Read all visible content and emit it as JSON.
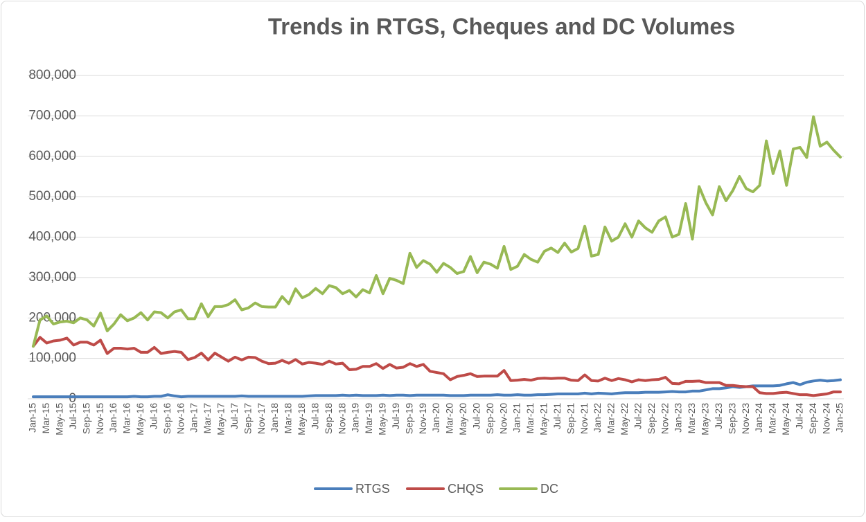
{
  "chart_data": {
    "type": "line",
    "title": "Trends in RTGS, Cheques and DC Volumes",
    "categories": [
      "Jan-15",
      null,
      "Mar-15",
      null,
      "May-15",
      null,
      "Jul-15",
      null,
      "Sep-15",
      null,
      "Nov-15",
      null,
      "Jan-16",
      null,
      "Mar-16",
      null,
      "May-16",
      null,
      "Jul-16",
      null,
      "Sep-16",
      null,
      "Nov-16",
      null,
      "Jan-17",
      null,
      "Mar-17",
      null,
      "May-17",
      null,
      "Jul-17",
      null,
      "Sep-17",
      null,
      "Nov-17",
      null,
      "Jan-18",
      null,
      "Mar-18",
      null,
      "May-18",
      null,
      "Jul-18",
      null,
      "Sep-18",
      null,
      "Nov-18",
      null,
      "Jan-19",
      null,
      "Mar-19",
      null,
      "May-19",
      null,
      "Jul-19",
      null,
      "Sep-19",
      null,
      "Nov-19",
      null,
      "Jan-20",
      null,
      "Mar-20",
      null,
      "May-20",
      null,
      "Jul-20",
      null,
      "Sep-20",
      null,
      "Nov-20",
      null,
      "Jan-21",
      null,
      "Mar-21",
      null,
      "May-21",
      null,
      "Jul-21",
      null,
      "Sep-21",
      null,
      "Nov-21",
      null,
      "Jan-22",
      null,
      "Mar-22",
      null,
      "May-22",
      null,
      "Jul-22",
      null,
      "Sep-22",
      null,
      "Nov-22",
      null,
      "Jan-23",
      null,
      "Mar-23",
      null,
      "May-23",
      null,
      "Jul-23",
      null,
      "Sep-23",
      null,
      "Nov-23",
      null,
      "Jan-24",
      null,
      "Mar-24",
      null,
      "May-24",
      null,
      "Jul-24",
      null,
      "Sep-24",
      null,
      "Nov-24",
      null,
      "Jan-25"
    ],
    "series": [
      {
        "name": "RTGS",
        "color": "#4a7ebb",
        "values": [
          5000,
          5000,
          5000,
          5000,
          5000,
          5000,
          5000,
          5000,
          5000,
          5000,
          5000,
          5000,
          5000,
          5000,
          5000,
          6000,
          5000,
          5000,
          6000,
          6000,
          10000,
          7000,
          5000,
          6000,
          6000,
          6000,
          6000,
          6000,
          6000,
          6000,
          6000,
          7000,
          6000,
          6000,
          6000,
          6000,
          6000,
          6000,
          6000,
          6000,
          6000,
          7000,
          8000,
          8000,
          8000,
          8000,
          9000,
          8000,
          9000,
          8000,
          8000,
          8000,
          9000,
          8000,
          9000,
          9000,
          8000,
          9000,
          9000,
          9000,
          9000,
          9000,
          8000,
          8000,
          8000,
          9000,
          9000,
          9000,
          9000,
          10000,
          9000,
          9000,
          10000,
          9000,
          9000,
          10000,
          10000,
          11000,
          12000,
          12000,
          12000,
          12000,
          14000,
          12000,
          14000,
          13000,
          12000,
          14000,
          15000,
          15000,
          15000,
          16000,
          16000,
          16000,
          17000,
          18000,
          17000,
          17000,
          19000,
          19000,
          22000,
          25000,
          25000,
          27000,
          30000,
          28000,
          30000,
          32000,
          32000,
          32000,
          32000,
          33000,
          37000,
          40000,
          35000,
          41000,
          44000,
          46000,
          44000,
          45000,
          47000
        ]
      },
      {
        "name": "CHQS",
        "color": "#be4b48",
        "values": [
          130000,
          152000,
          138000,
          143000,
          145000,
          150000,
          133000,
          140000,
          140000,
          133000,
          145000,
          112000,
          125000,
          125000,
          123000,
          125000,
          115000,
          115000,
          127000,
          112000,
          115000,
          117000,
          115000,
          97000,
          102000,
          113000,
          96000,
          113000,
          103000,
          93000,
          103000,
          96000,
          103000,
          102000,
          93000,
          87000,
          88000,
          95000,
          88000,
          97000,
          86000,
          90000,
          88000,
          85000,
          93000,
          86000,
          88000,
          72000,
          73000,
          80000,
          80000,
          87000,
          75000,
          85000,
          76000,
          78000,
          87000,
          80000,
          85000,
          68000,
          65000,
          62000,
          47000,
          55000,
          58000,
          62000,
          55000,
          56000,
          56000,
          56000,
          70000,
          45000,
          46000,
          48000,
          46000,
          50000,
          51000,
          50000,
          51000,
          51000,
          46000,
          45000,
          59000,
          45000,
          44000,
          51000,
          45000,
          50000,
          47000,
          42000,
          47000,
          45000,
          47000,
          48000,
          53000,
          38000,
          37000,
          43000,
          43000,
          44000,
          40000,
          40000,
          40000,
          33000,
          33000,
          31000,
          30000,
          30000,
          15000,
          13000,
          13000,
          15000,
          16000,
          13000,
          10000,
          10000,
          8000,
          10000,
          12000,
          17000,
          17000
        ]
      },
      {
        "name": "DC",
        "color": "#98b954",
        "values": [
          130000,
          195000,
          205000,
          185000,
          190000,
          192000,
          188000,
          200000,
          195000,
          180000,
          212000,
          168000,
          185000,
          208000,
          193000,
          200000,
          213000,
          195000,
          215000,
          213000,
          200000,
          215000,
          220000,
          198000,
          198000,
          235000,
          203000,
          228000,
          228000,
          233000,
          245000,
          220000,
          225000,
          237000,
          228000,
          227000,
          227000,
          253000,
          235000,
          272000,
          250000,
          258000,
          273000,
          260000,
          280000,
          275000,
          260000,
          268000,
          252000,
          270000,
          262000,
          305000,
          260000,
          298000,
          293000,
          285000,
          360000,
          325000,
          342000,
          333000,
          313000,
          335000,
          325000,
          310000,
          315000,
          352000,
          312000,
          338000,
          333000,
          323000,
          377000,
          320000,
          328000,
          357000,
          345000,
          338000,
          365000,
          373000,
          362000,
          385000,
          363000,
          372000,
          427000,
          353000,
          357000,
          425000,
          390000,
          400000,
          433000,
          400000,
          440000,
          423000,
          412000,
          440000,
          450000,
          400000,
          407000,
          483000,
          395000,
          525000,
          485000,
          455000,
          525000,
          490000,
          515000,
          550000,
          520000,
          512000,
          528000,
          638000,
          557000,
          613000,
          528000,
          618000,
          622000,
          597000,
          698000,
          625000,
          635000,
          615000,
          598000
        ]
      }
    ],
    "ylim": [
      0,
      800000
    ],
    "yticks": [
      0,
      {
        "value": 100000,
        "label": "100,000"
      },
      {
        "value": 200000,
        "label": "200,000"
      },
      {
        "value": 300000,
        "label": "300,000"
      },
      {
        "value": 400000,
        "label": "400,000"
      },
      {
        "value": 500000,
        "label": "500,000"
      },
      {
        "value": 600000,
        "label": "600,000"
      },
      {
        "value": 700000,
        "label": "700,000"
      },
      {
        "value": 800000,
        "label": "800,000"
      }
    ],
    "grid": true,
    "legend": "bottom"
  }
}
